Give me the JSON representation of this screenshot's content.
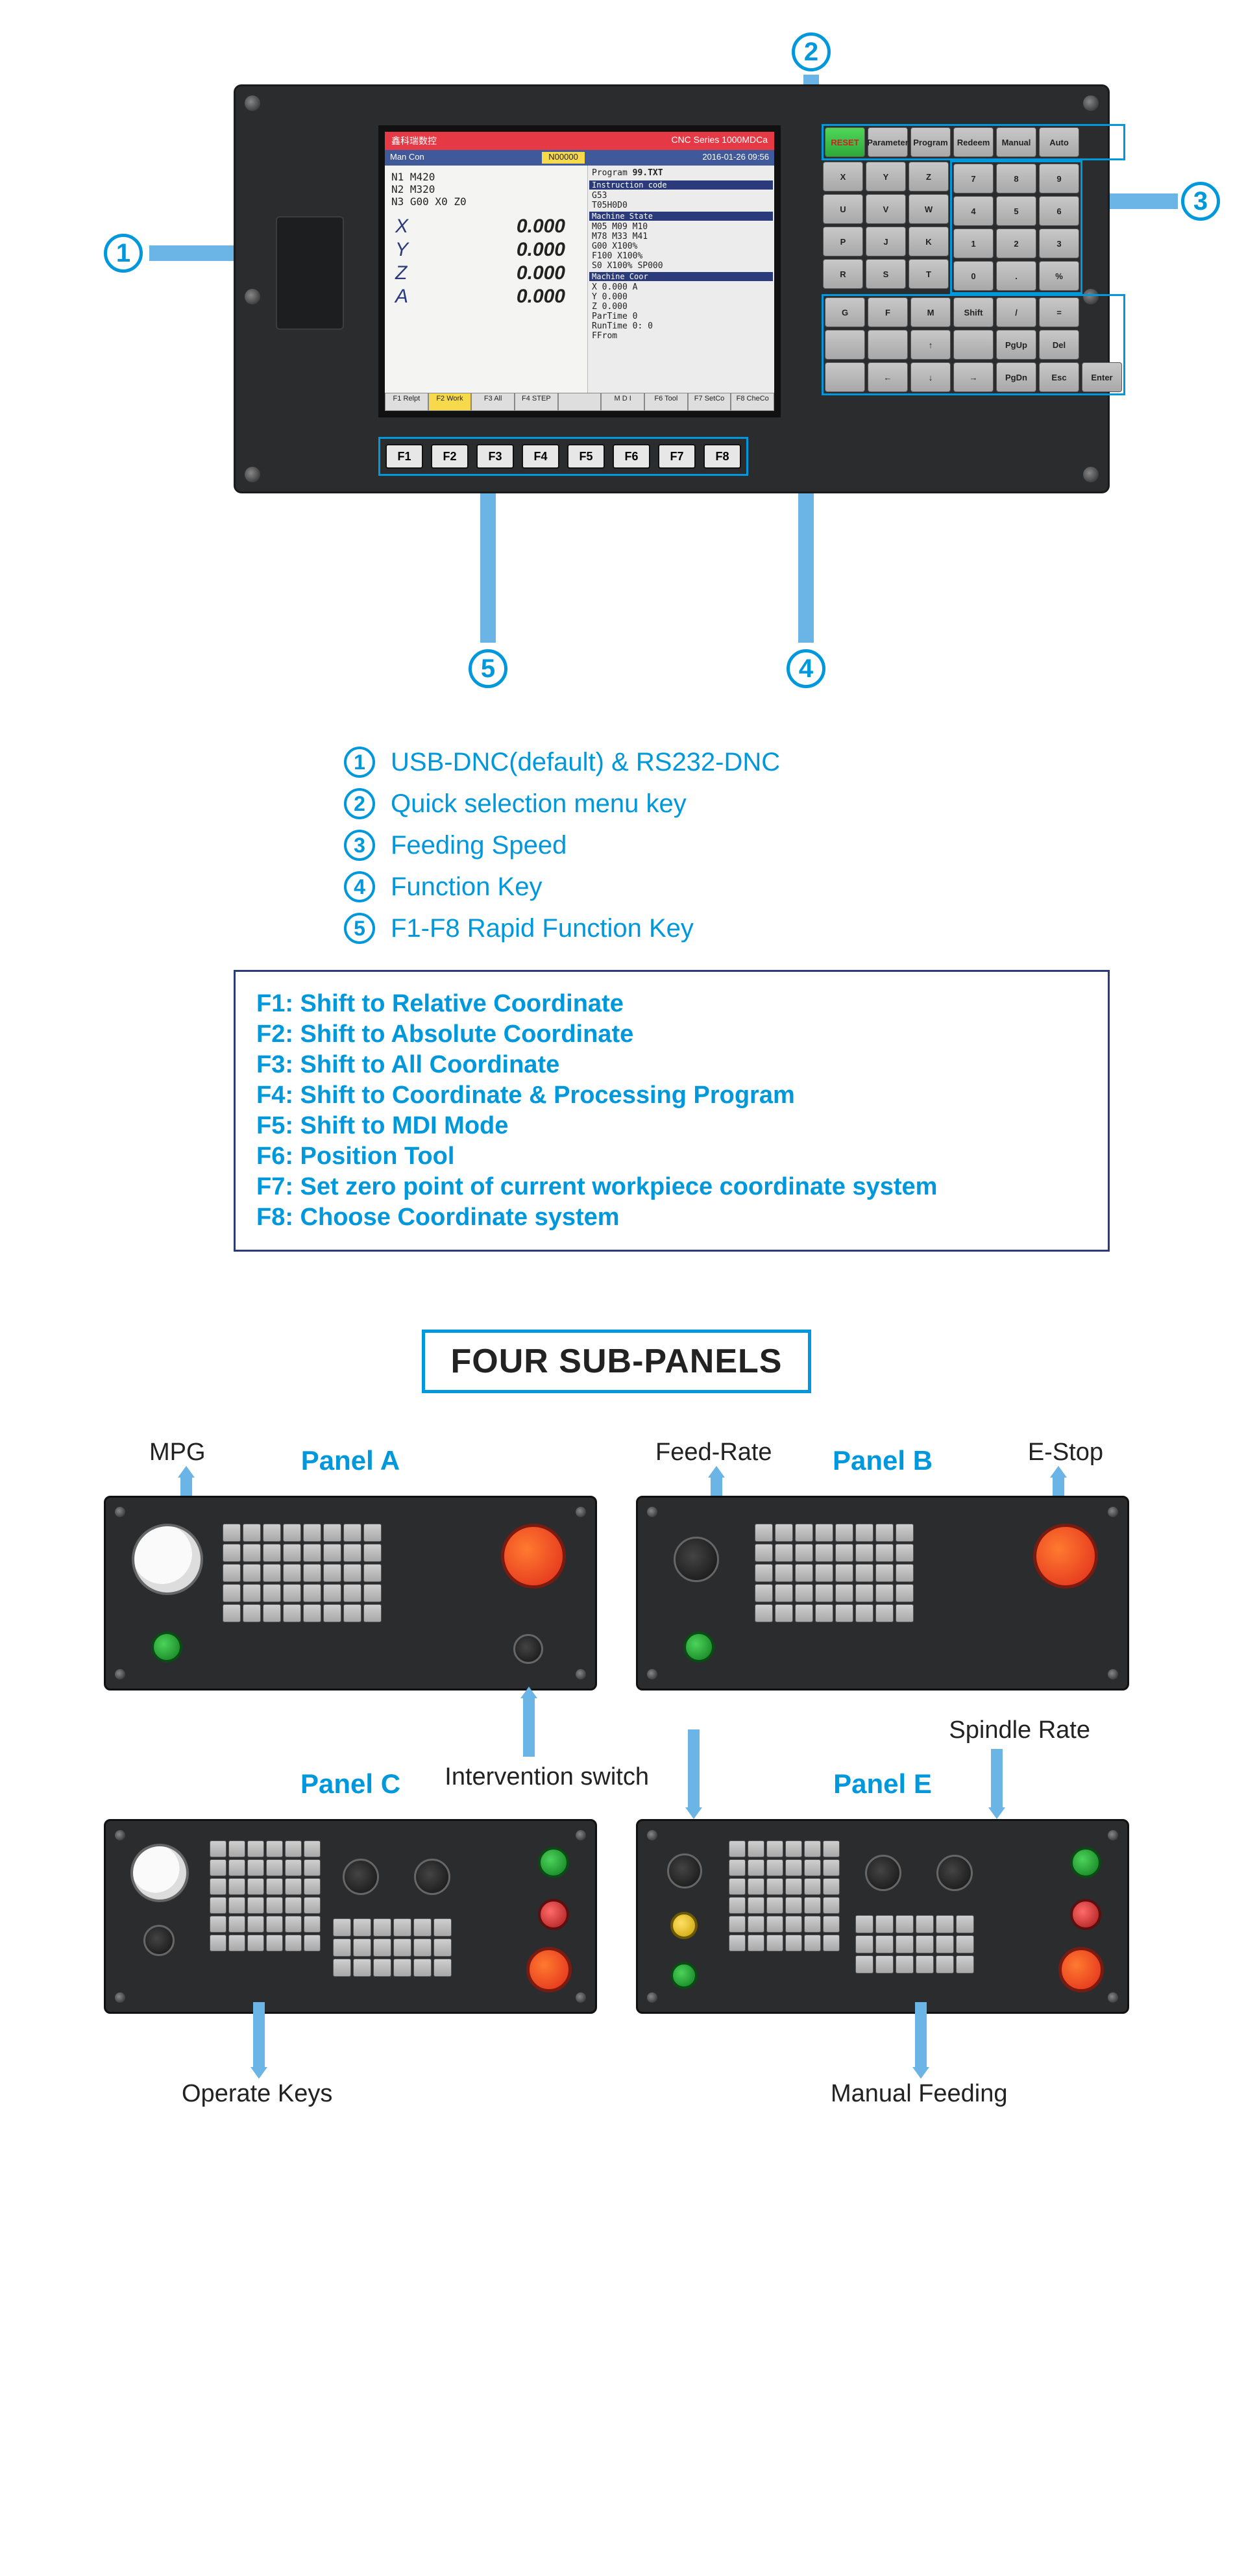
{
  "colors": {
    "accent": "#0098dc",
    "arrow": "#6bb4e6",
    "panel": "#2a2c2e",
    "box_border": "#2a3a7a"
  },
  "lcd": {
    "brand": "鑫科瑞数控",
    "series": "CNC Series 1000MDCa",
    "mode": "Man  Con",
    "program_no": "N00000",
    "datetime": "2016-01-26  09:56",
    "code": [
      "N1 M420",
      "N2 M320",
      "N3 G00 X0 Z0"
    ],
    "positions": [
      {
        "axis": "X",
        "value": "0.000"
      },
      {
        "axis": "Y",
        "value": "0.000"
      },
      {
        "axis": "Z",
        "value": "0.000"
      },
      {
        "axis": "A",
        "value": "0.000"
      }
    ],
    "right": {
      "program_label": "Program",
      "program": "99.TXT",
      "inst_label": "Instruction code",
      "inst": [
        "G53",
        "T05H0D0"
      ],
      "mstate_label": "Machine State",
      "mstate": [
        "M05    M09    M10",
        "M78    M33    M41",
        "  G00    X100%",
        "  F100   X100%",
        "  S0     X100%  SP000"
      ],
      "mcoor_label": "Machine Coor",
      "mcoor": [
        "X           0.000 A",
        "Y           0.000",
        "Z           0.000"
      ],
      "parttime": "ParTime  0",
      "runtime": "RunTime  0: 0",
      "ffrom": "FFrom"
    },
    "footer": [
      "F1 Relpt",
      "F2 Work",
      "F3 All",
      "F4 STEP",
      "",
      "M D I",
      "F6 Tool",
      "F7 SetCo",
      "F8 CheCo"
    ],
    "footer_active_index": 1
  },
  "f_keys": [
    "F1",
    "F2",
    "F3",
    "F4",
    "F5",
    "F6",
    "F7",
    "F8"
  ],
  "keypad": {
    "menu_row": [
      "RESET",
      "Parameter",
      "Program",
      "Redeem",
      "Manual",
      "Auto"
    ],
    "letter_rows": [
      [
        "X",
        "Y",
        "Z"
      ],
      [
        "U",
        "V",
        "W"
      ],
      [
        "P",
        "J",
        "K"
      ],
      [
        "R",
        "S",
        "T"
      ]
    ],
    "num_rows": [
      [
        "7",
        "8",
        "9"
      ],
      [
        "4",
        "5",
        "6"
      ],
      [
        "1",
        "2",
        "3"
      ],
      [
        "0",
        ".",
        "%"
      ]
    ],
    "fn_rows": [
      [
        "G",
        "F",
        "M",
        "Shift",
        "/",
        "="
      ],
      [
        "",
        "",
        "↑",
        "",
        "PgUp",
        "Del"
      ],
      [
        "",
        "←",
        "↓",
        "→",
        "PgDn",
        "Esc",
        "Enter"
      ]
    ]
  },
  "callouts": [
    {
      "n": "1",
      "text": "USB-DNC(default) & RS232-DNC"
    },
    {
      "n": "2",
      "text": "Quick selection menu key"
    },
    {
      "n": "3",
      "text": "Feeding Speed"
    },
    {
      "n": "4",
      "text": "Function Key"
    },
    {
      "n": "5",
      "text": "F1-F8 Rapid Function Key"
    }
  ],
  "f_descriptions": [
    "F1: Shift to Relative Coordinate",
    "F2: Shift to Absolute Coordinate",
    "F3: Shift to All Coordinate",
    "F4: Shift to Coordinate & Processing Program",
    "F5: Shift to MDI Mode",
    "F6: Position Tool",
    "F7: Set zero point of current workpiece coordinate system",
    "F8: Choose Coordinate system"
  ],
  "sub_title": "FOUR SUB-PANELS",
  "subpanels": {
    "a": {
      "title": "Panel A",
      "mpg": "MPG",
      "intervention": "Intervention switch"
    },
    "b": {
      "title": "Panel B",
      "feedrate": "Feed-Rate",
      "estop": "E-Stop"
    },
    "c": {
      "title": "Panel C",
      "operate": "Operate Keys"
    },
    "e": {
      "title": "Panel E",
      "spindle": "Spindle Rate",
      "intervention": "Intervention switch",
      "manual": "Manual Feeding"
    }
  }
}
